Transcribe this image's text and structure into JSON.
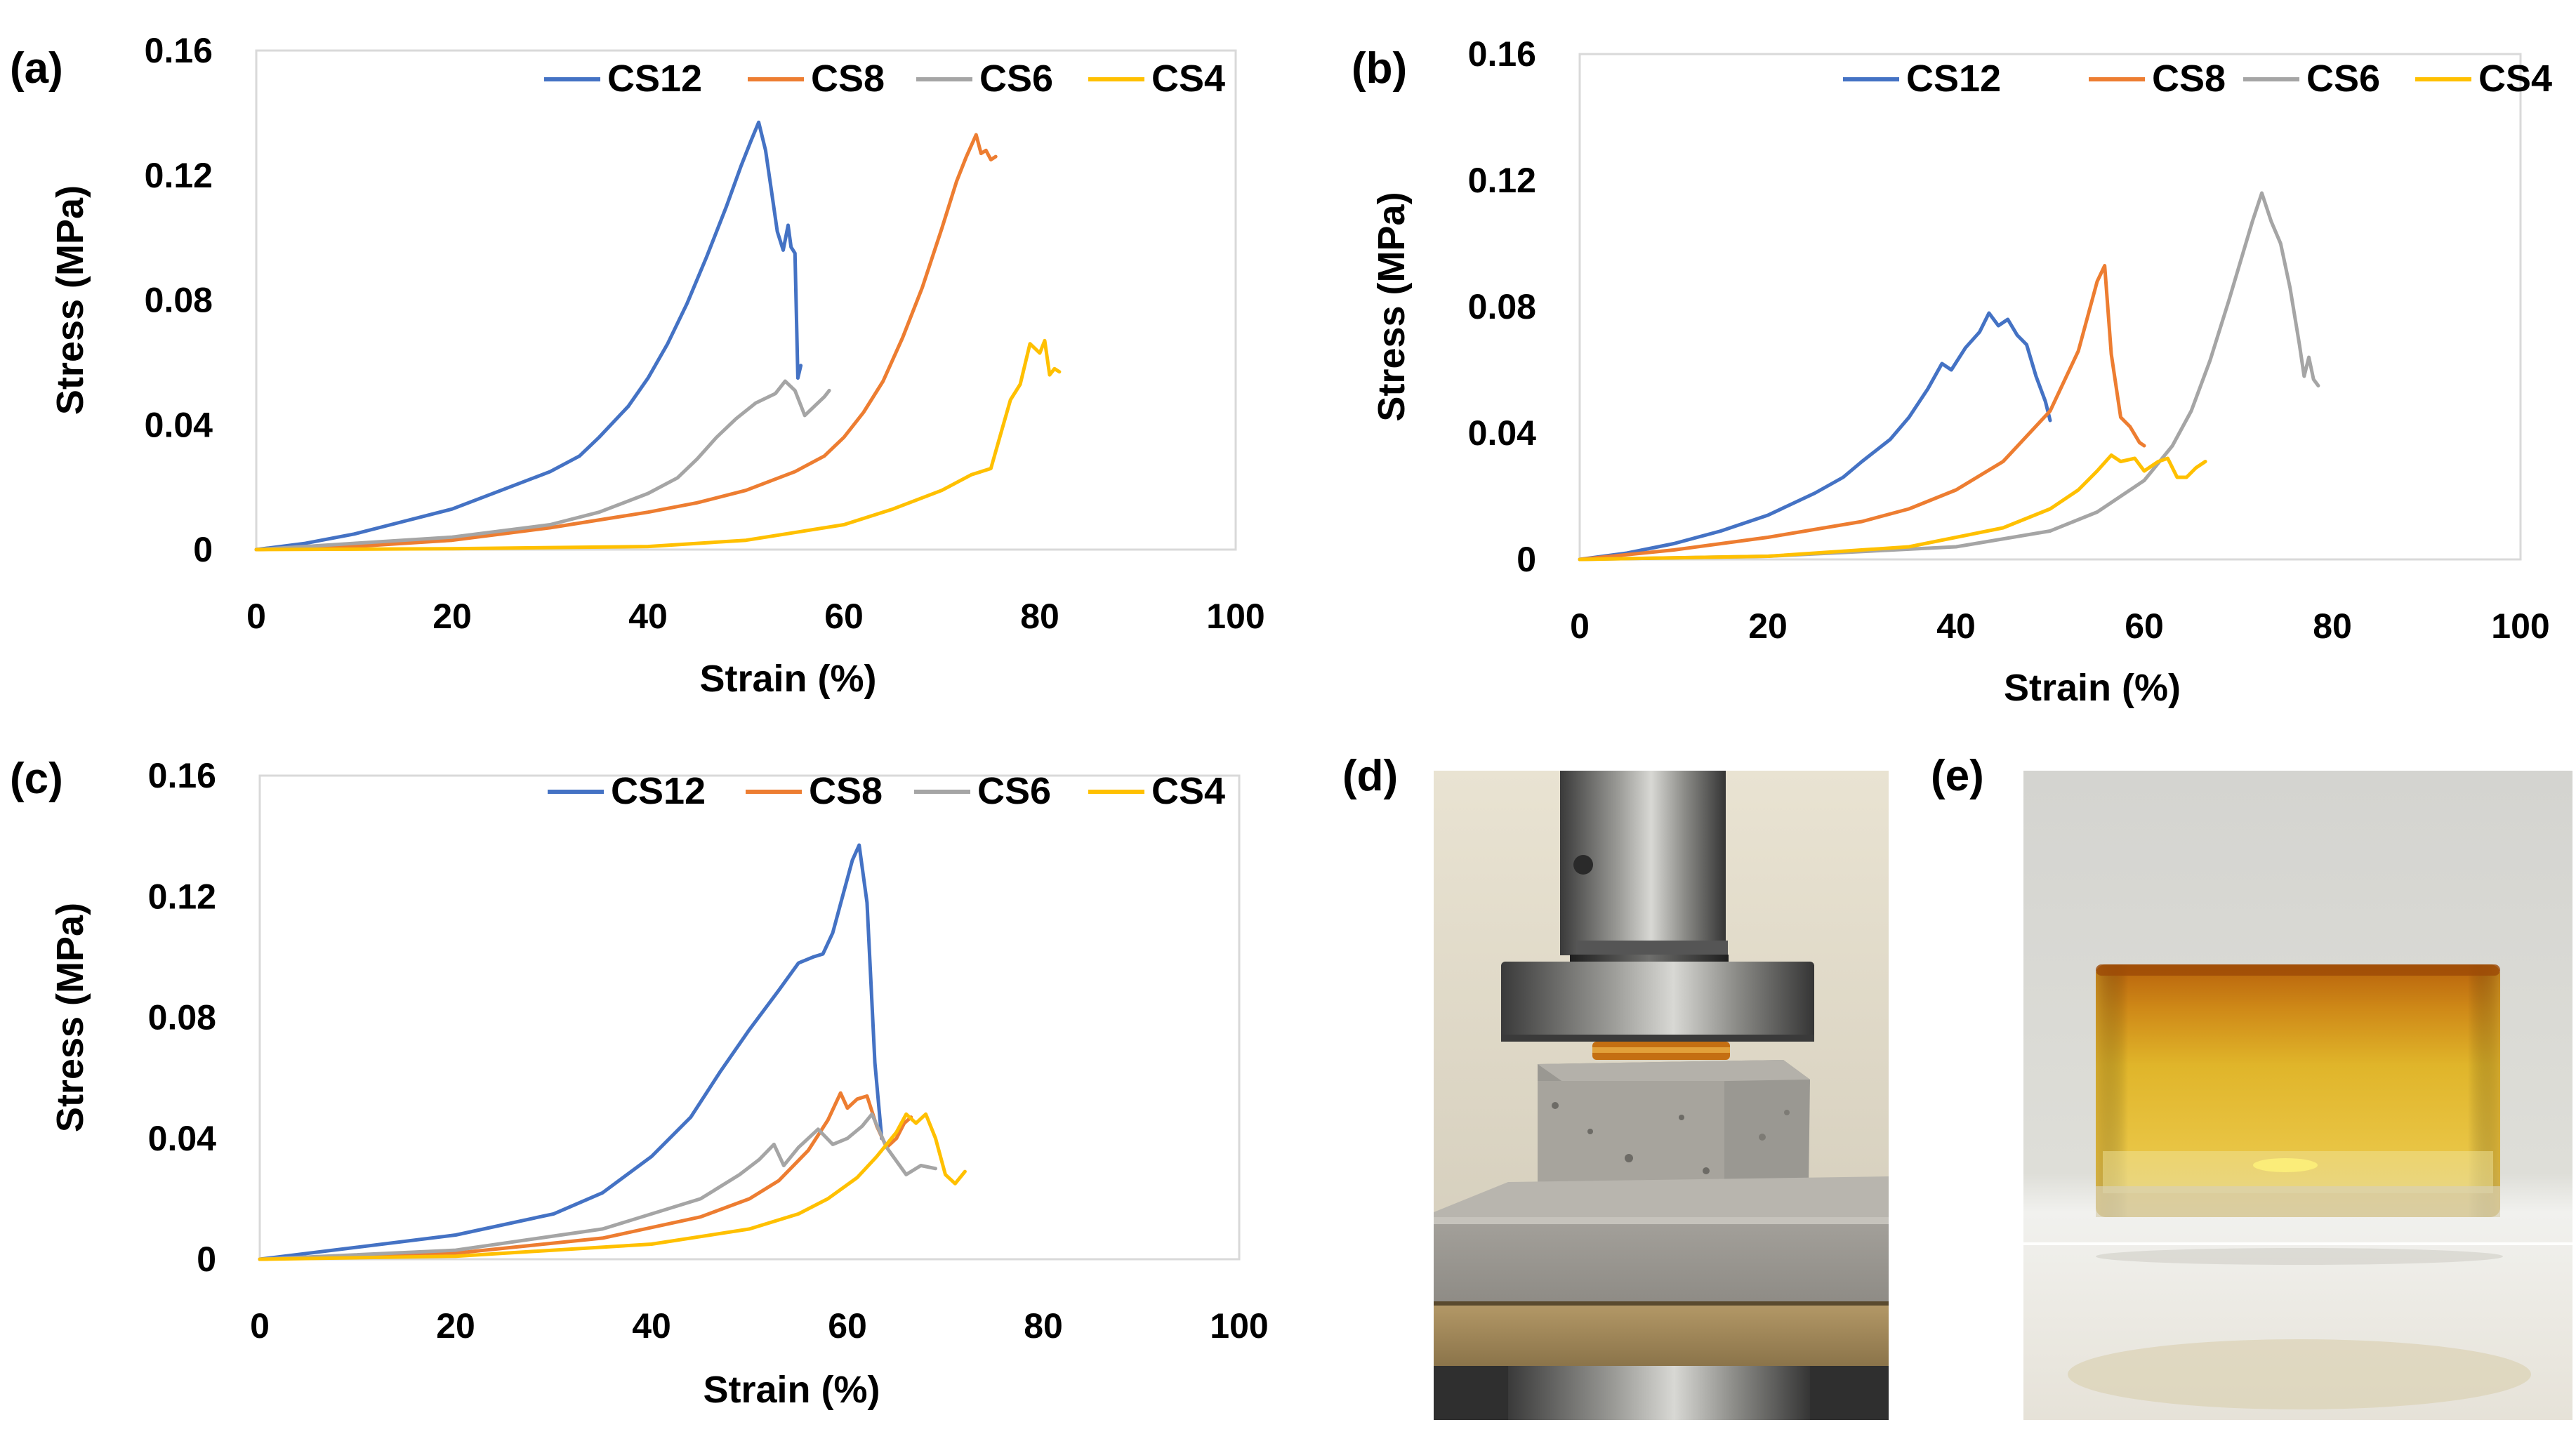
{
  "colors": {
    "CS12": "#4472c4",
    "CS8": "#ed7d31",
    "CS6": "#a5a5a5",
    "CS4": "#ffc000",
    "plot_border": "#d9d9d9"
  },
  "chart_data": [
    {
      "panel": "(a)",
      "type": "line",
      "xlabel": "Strain (%)",
      "ylabel": "Stress (MPa)",
      "xlim": [
        0,
        100
      ],
      "ylim": [
        0,
        0.16
      ],
      "xticks": [
        "0",
        "20",
        "40",
        "60",
        "80",
        "100"
      ],
      "yticks": [
        "0",
        "0.04",
        "0.08",
        "0.12",
        "0.16"
      ],
      "legend": "top-right",
      "series": [
        {
          "name": "CS12",
          "x": [
            0,
            5,
            10,
            15,
            20,
            25,
            30,
            33,
            35,
            38,
            40,
            42,
            44,
            46,
            48,
            49.5,
            50.5,
            51.3,
            52,
            52.6,
            53.2,
            53.8,
            54.3,
            54.6,
            55,
            55.3,
            55.6
          ],
          "y": [
            0,
            0.002,
            0.005,
            0.009,
            0.013,
            0.019,
            0.025,
            0.03,
            0.036,
            0.046,
            0.055,
            0.066,
            0.079,
            0.094,
            0.11,
            0.123,
            0.131,
            0.137,
            0.128,
            0.115,
            0.102,
            0.096,
            0.104,
            0.097,
            0.095,
            0.055,
            0.059
          ]
        },
        {
          "name": "CS8",
          "x": [
            0,
            10,
            20,
            30,
            40,
            45,
            50,
            55,
            58,
            60,
            62,
            64,
            66,
            68,
            70,
            71.5,
            72.5,
            73.5,
            74,
            74.5,
            75,
            75.5
          ],
          "y": [
            0,
            0.001,
            0.003,
            0.007,
            0.012,
            0.015,
            0.019,
            0.025,
            0.03,
            0.036,
            0.044,
            0.054,
            0.068,
            0.084,
            0.103,
            0.118,
            0.126,
            0.133,
            0.127,
            0.128,
            0.125,
            0.126
          ]
        },
        {
          "name": "CS6",
          "x": [
            0,
            10,
            20,
            30,
            35,
            40,
            43,
            45,
            47,
            49,
            51,
            53,
            54,
            55,
            56,
            57,
            58,
            58.5
          ],
          "y": [
            0,
            0.002,
            0.004,
            0.008,
            0.012,
            0.018,
            0.023,
            0.029,
            0.036,
            0.042,
            0.047,
            0.05,
            0.054,
            0.051,
            0.043,
            0.046,
            0.049,
            0.051
          ]
        },
        {
          "name": "CS4",
          "x": [
            0,
            20,
            40,
            50,
            60,
            65,
            70,
            73,
            75,
            76,
            77,
            78,
            79,
            80,
            80.5,
            81,
            81.5,
            82
          ],
          "y": [
            0,
            0.0003,
            0.001,
            0.003,
            0.008,
            0.013,
            0.019,
            0.024,
            0.026,
            0.037,
            0.048,
            0.053,
            0.066,
            0.063,
            0.067,
            0.056,
            0.058,
            0.057
          ]
        }
      ]
    },
    {
      "panel": "(b)",
      "type": "line",
      "xlabel": "Strain (%)",
      "ylabel": "Stress (MPa)",
      "xlim": [
        0,
        100
      ],
      "ylim": [
        0,
        0.16
      ],
      "xticks": [
        "0",
        "20",
        "40",
        "60",
        "80",
        "100"
      ],
      "yticks": [
        "0",
        "0.04",
        "0.08",
        "0.12",
        "0.16"
      ],
      "legend": "top-right",
      "series": [
        {
          "name": "CS12",
          "x": [
            0,
            5,
            10,
            15,
            20,
            25,
            28,
            30,
            33,
            35,
            37,
            38.5,
            39.5,
            41,
            42.5,
            43.5,
            44.5,
            45.5,
            46.5,
            47.5,
            48.5,
            49.5,
            50
          ],
          "y": [
            0,
            0.002,
            0.005,
            0.009,
            0.014,
            0.021,
            0.026,
            0.031,
            0.038,
            0.045,
            0.054,
            0.062,
            0.06,
            0.067,
            0.072,
            0.078,
            0.074,
            0.076,
            0.071,
            0.068,
            0.058,
            0.05,
            0.044
          ]
        },
        {
          "name": "CS8",
          "x": [
            0,
            10,
            20,
            30,
            35,
            40,
            45,
            50,
            53,
            55,
            55.8,
            56.5,
            57.5,
            58.5,
            59.5,
            60
          ],
          "y": [
            0,
            0.003,
            0.007,
            0.012,
            0.016,
            0.022,
            0.031,
            0.047,
            0.066,
            0.088,
            0.093,
            0.065,
            0.045,
            0.042,
            0.037,
            0.036
          ]
        },
        {
          "name": "CS6",
          "x": [
            0,
            20,
            40,
            50,
            55,
            60,
            63,
            65,
            67,
            69,
            70.5,
            71.5,
            72.5,
            73.5,
            74.5,
            75.5,
            76.5,
            77,
            77.5,
            78,
            78.5
          ],
          "y": [
            0,
            0.001,
            0.004,
            0.009,
            0.015,
            0.025,
            0.036,
            0.047,
            0.063,
            0.082,
            0.097,
            0.107,
            0.116,
            0.107,
            0.1,
            0.086,
            0.068,
            0.058,
            0.064,
            0.057,
            0.055
          ]
        },
        {
          "name": "CS4",
          "x": [
            0,
            20,
            35,
            45,
            50,
            53,
            55,
            56.5,
            57.5,
            59,
            60,
            61.5,
            62.5,
            63.5,
            64.5,
            65.5,
            66.5
          ],
          "y": [
            0,
            0.001,
            0.004,
            0.01,
            0.016,
            0.022,
            0.028,
            0.033,
            0.031,
            0.032,
            0.028,
            0.031,
            0.032,
            0.026,
            0.026,
            0.029,
            0.031
          ]
        }
      ]
    },
    {
      "panel": "(c)",
      "type": "line",
      "xlabel": "Strain (%)",
      "ylabel": "Stress (MPa)",
      "xlim": [
        0,
        100
      ],
      "ylim": [
        0,
        0.16
      ],
      "xticks": [
        "0",
        "20",
        "40",
        "60",
        "80",
        "100"
      ],
      "yticks": [
        "0",
        "0.04",
        "0.08",
        "0.12",
        "0.16"
      ],
      "legend": "top-right",
      "series": [
        {
          "name": "CS12",
          "x": [
            0,
            10,
            20,
            30,
            35,
            40,
            44,
            47,
            50,
            53,
            55,
            56.5,
            57.5,
            58.5,
            59.5,
            60.5,
            61.2,
            62,
            62.8,
            63.5
          ],
          "y": [
            0,
            0.004,
            0.008,
            0.015,
            0.022,
            0.034,
            0.047,
            0.062,
            0.076,
            0.089,
            0.098,
            0.1,
            0.101,
            0.108,
            0.12,
            0.132,
            0.137,
            0.118,
            0.065,
            0.04
          ]
        },
        {
          "name": "CS8",
          "x": [
            0,
            20,
            35,
            45,
            50,
            53,
            56,
            58,
            59.3,
            60,
            61,
            62,
            63,
            64,
            65,
            65.8,
            66.5
          ],
          "y": [
            0,
            0.002,
            0.007,
            0.014,
            0.02,
            0.026,
            0.036,
            0.046,
            0.055,
            0.05,
            0.053,
            0.054,
            0.044,
            0.037,
            0.04,
            0.045,
            0.047
          ]
        },
        {
          "name": "CS6",
          "x": [
            0,
            20,
            35,
            45,
            49,
            51,
            52.5,
            53.5,
            55,
            57,
            58.5,
            60,
            61.5,
            62.5,
            64,
            66,
            67.5,
            69
          ],
          "y": [
            0,
            0.003,
            0.01,
            0.02,
            0.028,
            0.033,
            0.038,
            0.031,
            0.037,
            0.043,
            0.038,
            0.04,
            0.044,
            0.048,
            0.037,
            0.028,
            0.031,
            0.03
          ]
        },
        {
          "name": "CS4",
          "x": [
            0,
            20,
            40,
            50,
            55,
            58,
            61,
            63,
            65,
            66,
            67,
            68,
            69,
            70,
            71,
            72
          ],
          "y": [
            0,
            0.001,
            0.005,
            0.01,
            0.015,
            0.02,
            0.027,
            0.034,
            0.042,
            0.048,
            0.045,
            0.048,
            0.04,
            0.028,
            0.025,
            0.029
          ]
        }
      ]
    }
  ],
  "photos": [
    {
      "panel": "(d)"
    },
    {
      "panel": "(e)"
    }
  ]
}
